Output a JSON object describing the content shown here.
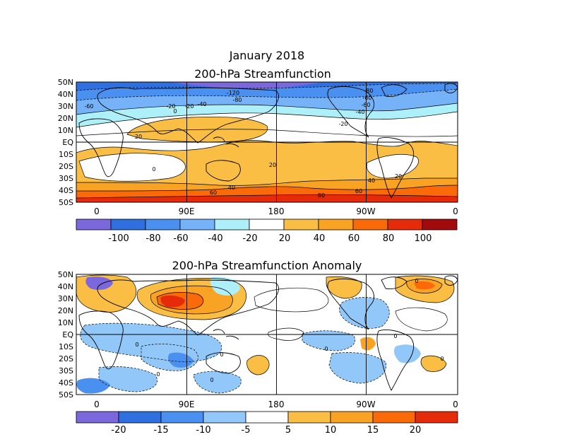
{
  "figure": {
    "title": "January 2018"
  },
  "chart_data": [
    {
      "type": "heatmap",
      "title": "200-hPa Streamfunction",
      "lat_labels": [
        "50N",
        "40N",
        "30N",
        "20N",
        "10N",
        "EQ",
        "10S",
        "20S",
        "30S",
        "40S",
        "50S"
      ],
      "lon_labels": [
        "0",
        "90E",
        "180",
        "90W",
        "0"
      ],
      "colorbar": {
        "tick_labels": [
          "-100",
          "-80",
          "-60",
          "-40",
          "-20",
          "20",
          "40",
          "60",
          "80",
          "100"
        ],
        "colors": [
          "#7b68dd",
          "#2f6fe0",
          "#4a90f0",
          "#75b2f8",
          "#aef0fa",
          "#ffffff",
          "#fbbe45",
          "#f9a324",
          "#fb6a09",
          "#e52b0a",
          "#a10b0b"
        ]
      },
      "contour_labels": [
        "-120",
        "-80",
        "-60",
        "-40",
        "-20",
        "0",
        "20",
        "20",
        "20",
        "40",
        "40",
        "60",
        "60",
        "80",
        "-60",
        "-20",
        "-40",
        "-60",
        "-80",
        "-20",
        "0"
      ]
    },
    {
      "type": "heatmap",
      "title": "200-hPa Streamfunction Anomaly",
      "lat_labels": [
        "50N",
        "40N",
        "30N",
        "20N",
        "10N",
        "EQ",
        "10S",
        "20S",
        "30S",
        "40S",
        "50S"
      ],
      "lon_labels": [
        "0",
        "90E",
        "180",
        "90W",
        "0"
      ],
      "colorbar": {
        "tick_labels": [
          "-20",
          "-15",
          "-10",
          "-5",
          "5",
          "10",
          "15",
          "20"
        ],
        "colors": [
          "#7b68dd",
          "#2f6fe0",
          "#4a90f0",
          "#92c8f9",
          "#ffffff",
          "#fbbe45",
          "#f9a324",
          "#fb6a09",
          "#e52b0a"
        ]
      },
      "contour_labels": [
        "0",
        "0",
        "0",
        "0",
        "0",
        "0",
        "0",
        "0"
      ]
    }
  ]
}
